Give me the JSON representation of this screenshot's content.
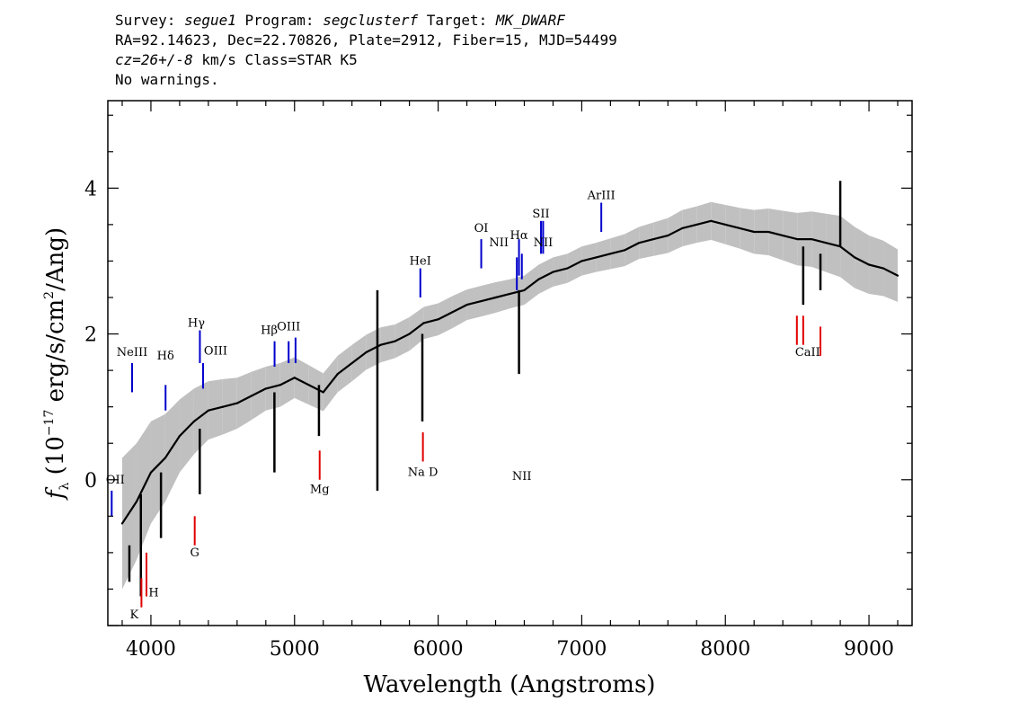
{
  "header": {
    "line1": {
      "label_survey": "Survey: ",
      "survey": "segue1",
      "label_program": " Program: ",
      "program": "segclusterf",
      "label_target": " Target: ",
      "target": "MK_DWARF"
    },
    "line2": "RA=92.14623, Dec=22.70826, Plate=2912, Fiber=15, MJD=54499",
    "line3": {
      "cz": "cz=26+/-8",
      "rest": " km/s Class=STAR K5"
    },
    "line4": "No warnings."
  },
  "chart_data": {
    "type": "line",
    "title": "",
    "xlabel": "Wavelength (Angstroms)",
    "ylabel": "fλ (10⁻¹⁷ erg/s/cm²/Ang)",
    "ylabel_parts": {
      "f": "f",
      "sub": "λ",
      "open": " (10",
      "exp1": "−17",
      "mid": " erg/s/cm",
      "exp2": "2",
      "close": "/Ang)"
    },
    "xlim": [
      3700,
      9300
    ],
    "ylim": [
      -2.0,
      5.2
    ],
    "xticks": [
      4000,
      5000,
      6000,
      7000,
      8000,
      9000
    ],
    "yticks": [
      0,
      2,
      4
    ],
    "grid": false,
    "colors": {
      "flux": "#000000",
      "error": "#c0c0c0",
      "emission": "#0000cc",
      "absorption": "#e00000"
    },
    "spectrum": {
      "x": [
        3800,
        3900,
        4000,
        4100,
        4200,
        4300,
        4400,
        4500,
        4600,
        4700,
        4800,
        4900,
        5000,
        5100,
        5200,
        5300,
        5400,
        5500,
        5600,
        5700,
        5800,
        5900,
        6000,
        6100,
        6200,
        6300,
        6400,
        6500,
        6600,
        6700,
        6800,
        6900,
        7000,
        7100,
        7200,
        7300,
        7400,
        7500,
        7600,
        7700,
        7800,
        7900,
        8000,
        8100,
        8200,
        8300,
        8400,
        8500,
        8600,
        8700,
        8800,
        8900,
        9000,
        9100,
        9200
      ],
      "y": [
        -0.6,
        -0.3,
        0.1,
        0.3,
        0.6,
        0.8,
        0.95,
        1.0,
        1.05,
        1.15,
        1.25,
        1.3,
        1.4,
        1.3,
        1.2,
        1.45,
        1.6,
        1.75,
        1.85,
        1.9,
        2.0,
        2.15,
        2.2,
        2.3,
        2.4,
        2.45,
        2.5,
        2.55,
        2.6,
        2.75,
        2.85,
        2.9,
        3.0,
        3.05,
        3.1,
        3.15,
        3.25,
        3.3,
        3.35,
        3.45,
        3.5,
        3.55,
        3.5,
        3.45,
        3.4,
        3.4,
        3.35,
        3.3,
        3.3,
        3.25,
        3.2,
        3.05,
        2.95,
        2.9,
        2.8
      ],
      "error_halfwidth": [
        0.9,
        0.8,
        0.7,
        0.6,
        0.5,
        0.45,
        0.4,
        0.38,
        0.35,
        0.33,
        0.3,
        0.3,
        0.28,
        0.27,
        0.26,
        0.25,
        0.25,
        0.24,
        0.24,
        0.23,
        0.23,
        0.22,
        0.22,
        0.22,
        0.21,
        0.21,
        0.21,
        0.2,
        0.2,
        0.2,
        0.2,
        0.2,
        0.2,
        0.2,
        0.21,
        0.22,
        0.22,
        0.23,
        0.24,
        0.25,
        0.25,
        0.26,
        0.27,
        0.28,
        0.3,
        0.32,
        0.34,
        0.36,
        0.38,
        0.4,
        0.42,
        0.42,
        0.4,
        0.38,
        0.36
      ]
    },
    "spikes": [
      {
        "x": 3850,
        "y0": -0.9,
        "y1": -1.4
      },
      {
        "x": 3930,
        "y0": -0.2,
        "y1": -1.6
      },
      {
        "x": 4070,
        "y0": 0.1,
        "y1": -0.8
      },
      {
        "x": 4340,
        "y0": 0.7,
        "y1": -0.2
      },
      {
        "x": 4860,
        "y0": 1.2,
        "y1": 0.1
      },
      {
        "x": 5170,
        "y0": 1.3,
        "y1": 0.6
      },
      {
        "x": 5577,
        "y0": 2.6,
        "y1": -0.15
      },
      {
        "x": 5890,
        "y0": 2.0,
        "y1": 0.8
      },
      {
        "x": 6563,
        "y0": 2.6,
        "y1": 1.45
      },
      {
        "x": 8542,
        "y0": 3.2,
        "y1": 2.4
      },
      {
        "x": 8662,
        "y0": 3.1,
        "y1": 2.6
      },
      {
        "x": 8800,
        "y0": 3.2,
        "y1": 4.1
      }
    ],
    "emission_lines": [
      {
        "label": "OII",
        "x": 3727,
        "y0": -0.5,
        "y1": -0.15,
        "label_y": -0.05,
        "label_dx": 4
      },
      {
        "label": "NeIII",
        "x": 3869,
        "y0": 1.2,
        "y1": 1.6,
        "label_y": 1.7,
        "label_dx": 0
      },
      {
        "label": "Hδ",
        "x": 4102,
        "y0": 0.95,
        "y1": 1.3,
        "label_y": 1.65,
        "label_dx": 0
      },
      {
        "label": "Hγ",
        "x": 4341,
        "y0": 1.6,
        "y1": 2.05,
        "label_y": 2.1,
        "label_dx": -4
      },
      {
        "label": "OIII",
        "x": 4363,
        "y0": 1.25,
        "y1": 1.6,
        "label_y": 1.72,
        "label_dx": 14
      },
      {
        "label": "Hβ",
        "x": 4861,
        "y0": 1.55,
        "y1": 1.9,
        "label_y": 2.0,
        "label_dx": -6
      },
      {
        "label": "OIII",
        "x": 4959,
        "y0": 1.6,
        "y1": 1.9,
        "label_y": 2.05,
        "label_dx": 0
      },
      {
        "label": "",
        "x": 5007,
        "y0": 1.6,
        "y1": 1.95,
        "label_y": 0,
        "label_dx": 0
      },
      {
        "label": "HeI",
        "x": 5876,
        "y0": 2.5,
        "y1": 2.9,
        "label_y": 2.95,
        "label_dx": 0
      },
      {
        "label": "OI",
        "x": 6300,
        "y0": 2.9,
        "y1": 3.3,
        "label_y": 3.4,
        "label_dx": 0
      },
      {
        "label": "NII",
        "x": 6548,
        "y0": 2.6,
        "y1": 3.05,
        "label_y": 3.2,
        "label_dx": -20
      },
      {
        "label": "Hα",
        "x": 6563,
        "y0": 2.8,
        "y1": 3.3,
        "label_y": 3.3,
        "label_dx": 0
      },
      {
        "label": "NII",
        "x": 6583,
        "y0": 2.75,
        "y1": 3.1,
        "label_y": 0,
        "label_dx": 0
      },
      {
        "label": "SII",
        "x": 6716,
        "y0": 3.1,
        "y1": 3.55,
        "label_y": 3.6,
        "label_dx": 0
      },
      {
        "label": "NII",
        "x": 6731,
        "y0": 3.1,
        "y1": 3.55,
        "label_y": 3.2,
        "label_dx": 0
      },
      {
        "label": "ArIII",
        "x": 7136,
        "y0": 3.4,
        "y1": 3.8,
        "label_y": 3.85,
        "label_dx": 0
      }
    ],
    "absorption_lines": [
      {
        "label": "K",
        "x": 3934,
        "y0": -1.35,
        "y1": -1.75,
        "label_y": -1.9,
        "label_dx": -8
      },
      {
        "label": "H",
        "x": 3969,
        "y0": -1.0,
        "y1": -1.6,
        "label_y": -1.6,
        "label_dx": 8
      },
      {
        "label": "G",
        "x": 4305,
        "y0": -0.5,
        "y1": -0.9,
        "label_y": -1.05,
        "label_dx": 0
      },
      {
        "label": "Mg",
        "x": 5175,
        "y0": 0.4,
        "y1": 0.0,
        "label_y": -0.18,
        "label_dx": 0
      },
      {
        "label": "Na D",
        "x": 5894,
        "y0": 0.65,
        "y1": 0.25,
        "label_y": 0.05,
        "label_dx": 0
      },
      {
        "label": "CaII",
        "x": 8498,
        "y0": 2.25,
        "y1": 1.85,
        "label_y": 1.7,
        "label_dx": 12
      },
      {
        "label": "",
        "x": 8542,
        "y0": 2.25,
        "y1": 1.85,
        "label_y": 0,
        "label_dx": 0
      },
      {
        "label": "",
        "x": 8662,
        "y0": 2.1,
        "y1": 1.7,
        "label_y": 0,
        "label_dx": 0
      }
    ]
  }
}
